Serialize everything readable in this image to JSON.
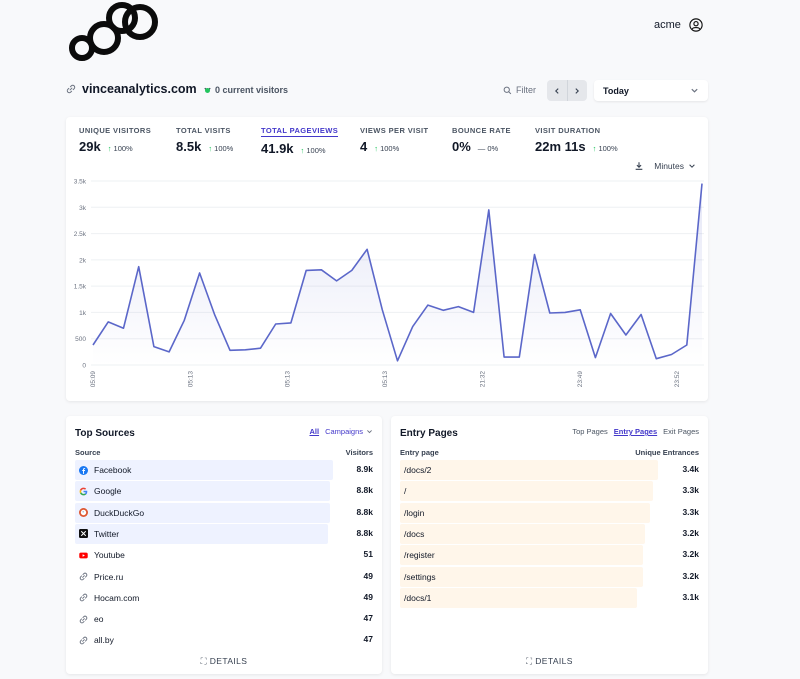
{
  "header": {
    "user_name": "acme",
    "site": "vinceanalytics.com",
    "current_visitors": "0 current visitors",
    "filter_label": "Filter",
    "period": "Today"
  },
  "metrics": [
    {
      "label": "UNIQUE VISITORS",
      "value": "29k",
      "change": "100%",
      "dir": "up"
    },
    {
      "label": "TOTAL VISITS",
      "value": "8.5k",
      "change": "100%",
      "dir": "up"
    },
    {
      "label": "TOTAL PAGEVIEWS",
      "value": "41.9k",
      "change": "100%",
      "dir": "up"
    },
    {
      "label": "VIEWS PER VISIT",
      "value": "4",
      "change": "100%",
      "dir": "up"
    },
    {
      "label": "BOUNCE RATE",
      "value": "0%",
      "change": "0%",
      "dir": "flat"
    },
    {
      "label": "VISIT DURATION",
      "value": "22m 11s",
      "change": "100%",
      "dir": "up"
    }
  ],
  "chart_controls": {
    "interval": "Minutes"
  },
  "chart_data": {
    "type": "area",
    "y_ticks": [
      "0",
      "500",
      "1k",
      "1.5k",
      "2k",
      "2.5k",
      "3k",
      "3.5k"
    ],
    "ylim": [
      0,
      3500
    ],
    "x_tick_labels": [
      "05:09",
      "05:13",
      "05:13",
      "05:13",
      "21:32",
      "23:49",
      "23:52"
    ],
    "series": [
      {
        "values": [
          380,
          820,
          700,
          1870,
          350,
          250,
          850,
          1750,
          950,
          280,
          290,
          320,
          780,
          800,
          1800,
          1810,
          1600,
          1800,
          2200,
          1050,
          80,
          730,
          1140,
          1040,
          1110,
          1000,
          2950,
          150,
          150,
          2100,
          990,
          1000,
          1050,
          140,
          980,
          570,
          960,
          120,
          200,
          380,
          3450
        ],
        "color": "#5b67c9"
      }
    ]
  },
  "colors": {
    "accent": "#4338ca",
    "line": "#5b67c9",
    "source_bar": "#eef2ff",
    "entry_bar": "#fff6ea"
  },
  "top_sources": {
    "title": "Top Sources",
    "tab_all": "All",
    "tab_campaigns": "Campaigns",
    "col_source": "Source",
    "col_visitors": "Visitors",
    "rows": [
      {
        "name": "Facebook",
        "value": "8.9k",
        "icon": "facebook-icon",
        "share": 1.0
      },
      {
        "name": "Google",
        "value": "8.8k",
        "icon": "google-icon",
        "share": 0.99
      },
      {
        "name": "DuckDuckGo",
        "value": "8.8k",
        "icon": "duckduckgo-icon",
        "share": 0.99
      },
      {
        "name": "Twitter",
        "value": "8.8k",
        "icon": "x-icon",
        "share": 0.98
      },
      {
        "name": "Youtube",
        "value": "51",
        "icon": "youtube-icon",
        "share": 0.0
      },
      {
        "name": "Price.ru",
        "value": "49",
        "icon": "link-icon",
        "share": 0.0
      },
      {
        "name": "Hocam.com",
        "value": "49",
        "icon": "link-icon",
        "share": 0.0
      },
      {
        "name": "eo",
        "value": "47",
        "icon": "link-icon",
        "share": 0.0
      },
      {
        "name": "all.by",
        "value": "47",
        "icon": "link-icon",
        "share": 0.0
      }
    ],
    "details": "DETAILS"
  },
  "entry_pages": {
    "title": "Entry Pages",
    "tab_top": "Top Pages",
    "tab_entry": "Entry Pages",
    "tab_exit": "Exit Pages",
    "col_page": "Entry page",
    "col_value": "Unique Entrances",
    "rows": [
      {
        "name": "/docs/2",
        "value": "3.4k",
        "share": 1.0
      },
      {
        "name": "/",
        "value": "3.3k",
        "share": 0.98
      },
      {
        "name": "/login",
        "value": "3.3k",
        "share": 0.97
      },
      {
        "name": "/docs",
        "value": "3.2k",
        "share": 0.95
      },
      {
        "name": "/register",
        "value": "3.2k",
        "share": 0.94
      },
      {
        "name": "/settings",
        "value": "3.2k",
        "share": 0.94
      },
      {
        "name": "/docs/1",
        "value": "3.1k",
        "share": 0.92
      }
    ],
    "details": "DETAILS"
  }
}
